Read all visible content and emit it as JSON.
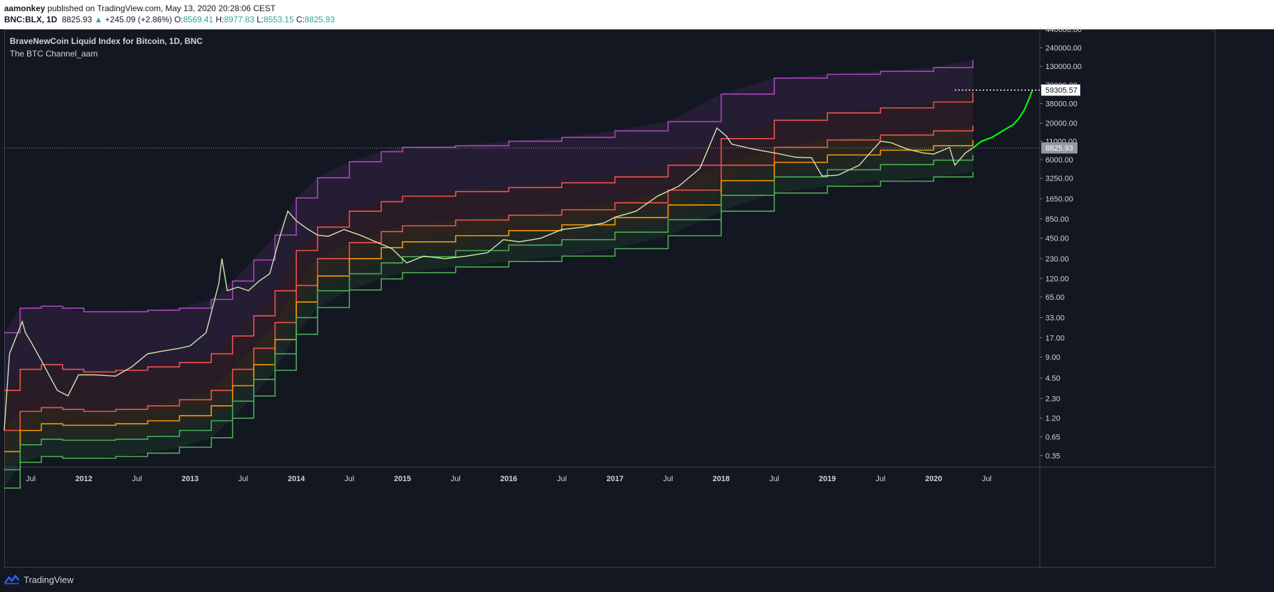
{
  "header": {
    "author": "aamonkey",
    "published": "published on TradingView.com, May 13, 2020 20:28:06 CEST",
    "symbol": "BNC:BLX, 1D",
    "last": "8825.93",
    "arrow": "▲",
    "change": "+245.09 (+2.86%)",
    "o_label": "O:",
    "o_val": "8569.41",
    "h_label": "H:",
    "h_val": "8977.83",
    "l_label": "L:",
    "l_val": "8553.15",
    "c_label": "C:",
    "c_val": "8825.93"
  },
  "legend": {
    "title": "BraveNewCoin Liquid Index for Bitcoin, 1D, BNC",
    "indicator": "The BTC Channel_aam"
  },
  "footer": {
    "brand": "TradingView"
  },
  "colors": {
    "background": "#131722",
    "purple": "#ab47bc",
    "red": "#ef5350",
    "orange": "#ff9800",
    "green": "#4caf50",
    "projection": "#00ff00",
    "price": "#f0e68c"
  },
  "chart_data": {
    "type": "line",
    "y_scale": "log",
    "ylim": [
      0.25,
      440000
    ],
    "y_ticks": [
      "440000.00",
      "240000.00",
      "130000.00",
      "70000.00",
      "38000.00",
      "20000.00",
      "11000.00",
      "6000.00",
      "3250.00",
      "1650.00",
      "850.00",
      "450.00",
      "230.00",
      "120.00",
      "65.00",
      "33.00",
      "17.00",
      "9.00",
      "4.50",
      "2.30",
      "1.20",
      "0.65",
      "0.35"
    ],
    "y_tick_values": [
      440000,
      240000,
      130000,
      70000,
      38000,
      20000,
      11000,
      6000,
      3250,
      1650,
      850,
      450,
      230,
      120,
      65,
      33,
      17,
      9,
      4.5,
      2.3,
      1.2,
      0.65,
      0.35
    ],
    "x_ticks": [
      "Jul",
      "2012",
      "Jul",
      "2013",
      "Jul",
      "2014",
      "Jul",
      "2015",
      "Jul",
      "2016",
      "Jul",
      "2017",
      "Jul",
      "2018",
      "Jul",
      "2019",
      "Jul",
      "2020",
      "Jul"
    ],
    "x_tick_values": [
      2011.5,
      2012,
      2012.5,
      2013,
      2013.5,
      2014,
      2014.5,
      2015,
      2015.5,
      2016,
      2016.5,
      2017,
      2017.5,
      2018,
      2018.5,
      2019,
      2019.5,
      2020,
      2020.5
    ],
    "xlim": [
      2011.25,
      2021.0
    ],
    "current_price_label": "8825.93",
    "current_price": 8825.93,
    "target_label": "59305.57",
    "target_value": 59305.57,
    "channel": {
      "x": [
        2011.25,
        2011.4,
        2011.6,
        2011.8,
        2012.0,
        2012.3,
        2012.6,
        2012.9,
        2013.2,
        2013.4,
        2013.6,
        2013.8,
        2014.0,
        2014.2,
        2014.5,
        2014.8,
        2015.0,
        2015.5,
        2016.0,
        2016.5,
        2017.0,
        2017.5,
        2018.0,
        2018.5,
        2019.0,
        2019.5,
        2020.0,
        2020.37
      ],
      "series": [
        {
          "name": "purple",
          "values": [
            20,
            45,
            48,
            45,
            40,
            40,
            42,
            45,
            60,
            110,
            220,
            500,
            1700,
            3300,
            5600,
            7800,
            9000,
            9500,
            11000,
            12500,
            15500,
            21000,
            52000,
            88000,
            100000,
            110000,
            125000,
            160000
          ]
        },
        {
          "name": "red_upper",
          "values": [
            3,
            6,
            7,
            6,
            5.5,
            5.8,
            6.5,
            7.5,
            10,
            18,
            35,
            80,
            300,
            650,
            1100,
            1500,
            1800,
            2100,
            2400,
            2800,
            3400,
            5000,
            12000,
            22000,
            28000,
            33000,
            40000,
            55000
          ]
        },
        {
          "name": "red_lower",
          "values": [
            0.8,
            1.5,
            1.7,
            1.6,
            1.5,
            1.6,
            1.8,
            2.2,
            3,
            6,
            12,
            28,
            95,
            230,
            390,
            560,
            680,
            820,
            960,
            1150,
            1450,
            2200,
            5000,
            9000,
            11500,
            13500,
            15500,
            18500
          ]
        },
        {
          "name": "orange",
          "values": [
            0.4,
            0.8,
            1.0,
            0.95,
            0.95,
            1.0,
            1.1,
            1.3,
            1.8,
            3.5,
            7,
            16,
            55,
            130,
            230,
            330,
            400,
            490,
            580,
            700,
            890,
            1350,
            3000,
            5500,
            7000,
            8200,
            9500,
            11500
          ]
        },
        {
          "name": "green_upper",
          "values": [
            0.22,
            0.5,
            0.6,
            0.58,
            0.58,
            0.6,
            0.66,
            0.8,
            1.1,
            2.1,
            4.3,
            10,
            33,
            80,
            140,
            200,
            245,
            300,
            360,
            430,
            550,
            830,
            1850,
            3400,
            4300,
            5100,
            5900,
            7000
          ]
        },
        {
          "name": "green_lower",
          "values": [
            0.12,
            0.28,
            0.34,
            0.32,
            0.32,
            0.34,
            0.38,
            0.46,
            0.63,
            1.2,
            2.5,
            5.8,
            19,
            46,
            82,
            118,
            145,
            175,
            210,
            250,
            320,
            490,
            1100,
            2000,
            2500,
            2950,
            3400,
            4000
          ]
        }
      ]
    },
    "price_series": {
      "name": "BLX",
      "x": [
        2011.25,
        2011.3,
        2011.42,
        2011.45,
        2011.5,
        2011.6,
        2011.75,
        2011.85,
        2011.95,
        2012.1,
        2012.3,
        2012.45,
        2012.6,
        2012.75,
        2012.9,
        2013.0,
        2013.15,
        2013.27,
        2013.3,
        2013.35,
        2013.45,
        2013.55,
        2013.65,
        2013.75,
        2013.85,
        2013.92,
        2014.0,
        2014.1,
        2014.2,
        2014.3,
        2014.45,
        2014.6,
        2014.75,
        2014.9,
        2015.04,
        2015.2,
        2015.4,
        2015.6,
        2015.8,
        2015.95,
        2016.1,
        2016.3,
        2016.5,
        2016.7,
        2016.9,
        2017.0,
        2017.2,
        2017.4,
        2017.6,
        2017.8,
        2017.96,
        2018.05,
        2018.1,
        2018.3,
        2018.5,
        2018.7,
        2018.85,
        2018.95,
        2019.1,
        2019.3,
        2019.5,
        2019.6,
        2019.75,
        2019.9,
        2020.0,
        2020.15,
        2020.2,
        2020.3,
        2020.37
      ],
      "values": [
        0.8,
        10,
        29,
        20,
        15,
        8,
        3,
        2.5,
        5,
        5,
        4.8,
        6.5,
        10,
        11,
        12,
        13,
        20,
        100,
        230,
        80,
        90,
        80,
        110,
        140,
        500,
        1100,
        800,
        620,
        500,
        480,
        600,
        500,
        400,
        320,
        200,
        250,
        230,
        250,
        280,
        430,
        400,
        450,
        600,
        650,
        750,
        900,
        1100,
        1800,
        2500,
        4500,
        17000,
        13000,
        10000,
        8500,
        7500,
        6500,
        6400,
        3500,
        3600,
        5000,
        11000,
        10500,
        8500,
        7500,
        7200,
        9000,
        5000,
        7500,
        8825
      ]
    },
    "projection_series": {
      "name": "projection",
      "x": [
        2020.37,
        2020.45,
        2020.55,
        2020.65,
        2020.75,
        2020.8,
        2020.85,
        2020.9,
        2020.93
      ],
      "values": [
        8825,
        11000,
        12500,
        15500,
        19000,
        23000,
        30000,
        45000,
        59305
      ]
    }
  }
}
